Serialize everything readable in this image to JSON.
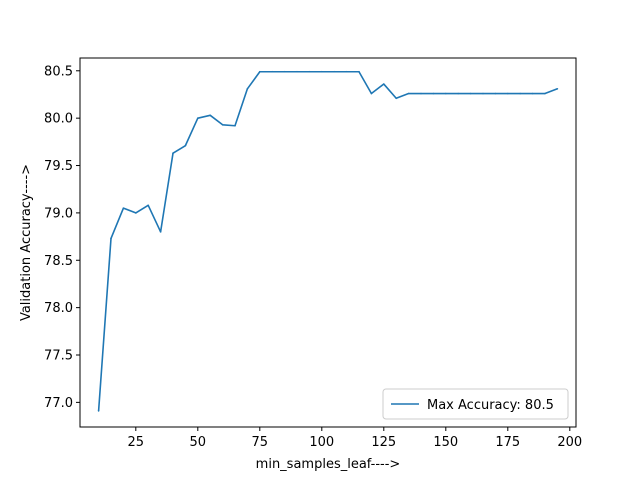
{
  "chart_data": {
    "type": "line",
    "title": "",
    "xlabel": "min_samples_leaf---->",
    "ylabel": "Validation Accuracy---->",
    "xlim": [
      2.5,
      202.5
    ],
    "ylim": [
      76.74,
      80.635
    ],
    "xticks": [
      25,
      50,
      75,
      100,
      125,
      150,
      175,
      200
    ],
    "yticks": [
      77.0,
      77.5,
      78.0,
      78.5,
      79.0,
      79.5,
      80.0,
      80.5
    ],
    "grid": false,
    "legend_position": "lower right",
    "series": [
      {
        "name": "Max Accuracy: 80.5",
        "color": "#1f77b4",
        "x": [
          10,
          15,
          20,
          25,
          30,
          35,
          40,
          45,
          50,
          55,
          60,
          65,
          70,
          75,
          80,
          85,
          90,
          95,
          100,
          105,
          110,
          115,
          120,
          125,
          130,
          135,
          140,
          145,
          150,
          155,
          160,
          165,
          170,
          175,
          180,
          185,
          190,
          195
        ],
        "y": [
          76.91,
          78.73,
          79.05,
          79.0,
          79.08,
          78.8,
          79.63,
          79.71,
          80.0,
          80.03,
          79.93,
          79.92,
          80.31,
          80.49,
          80.49,
          80.49,
          80.49,
          80.49,
          80.49,
          80.49,
          80.49,
          80.49,
          80.26,
          80.36,
          80.21,
          80.26,
          80.26,
          80.26,
          80.26,
          80.26,
          80.26,
          80.26,
          80.26,
          80.26,
          80.26,
          80.26,
          80.26,
          80.31
        ]
      }
    ]
  }
}
